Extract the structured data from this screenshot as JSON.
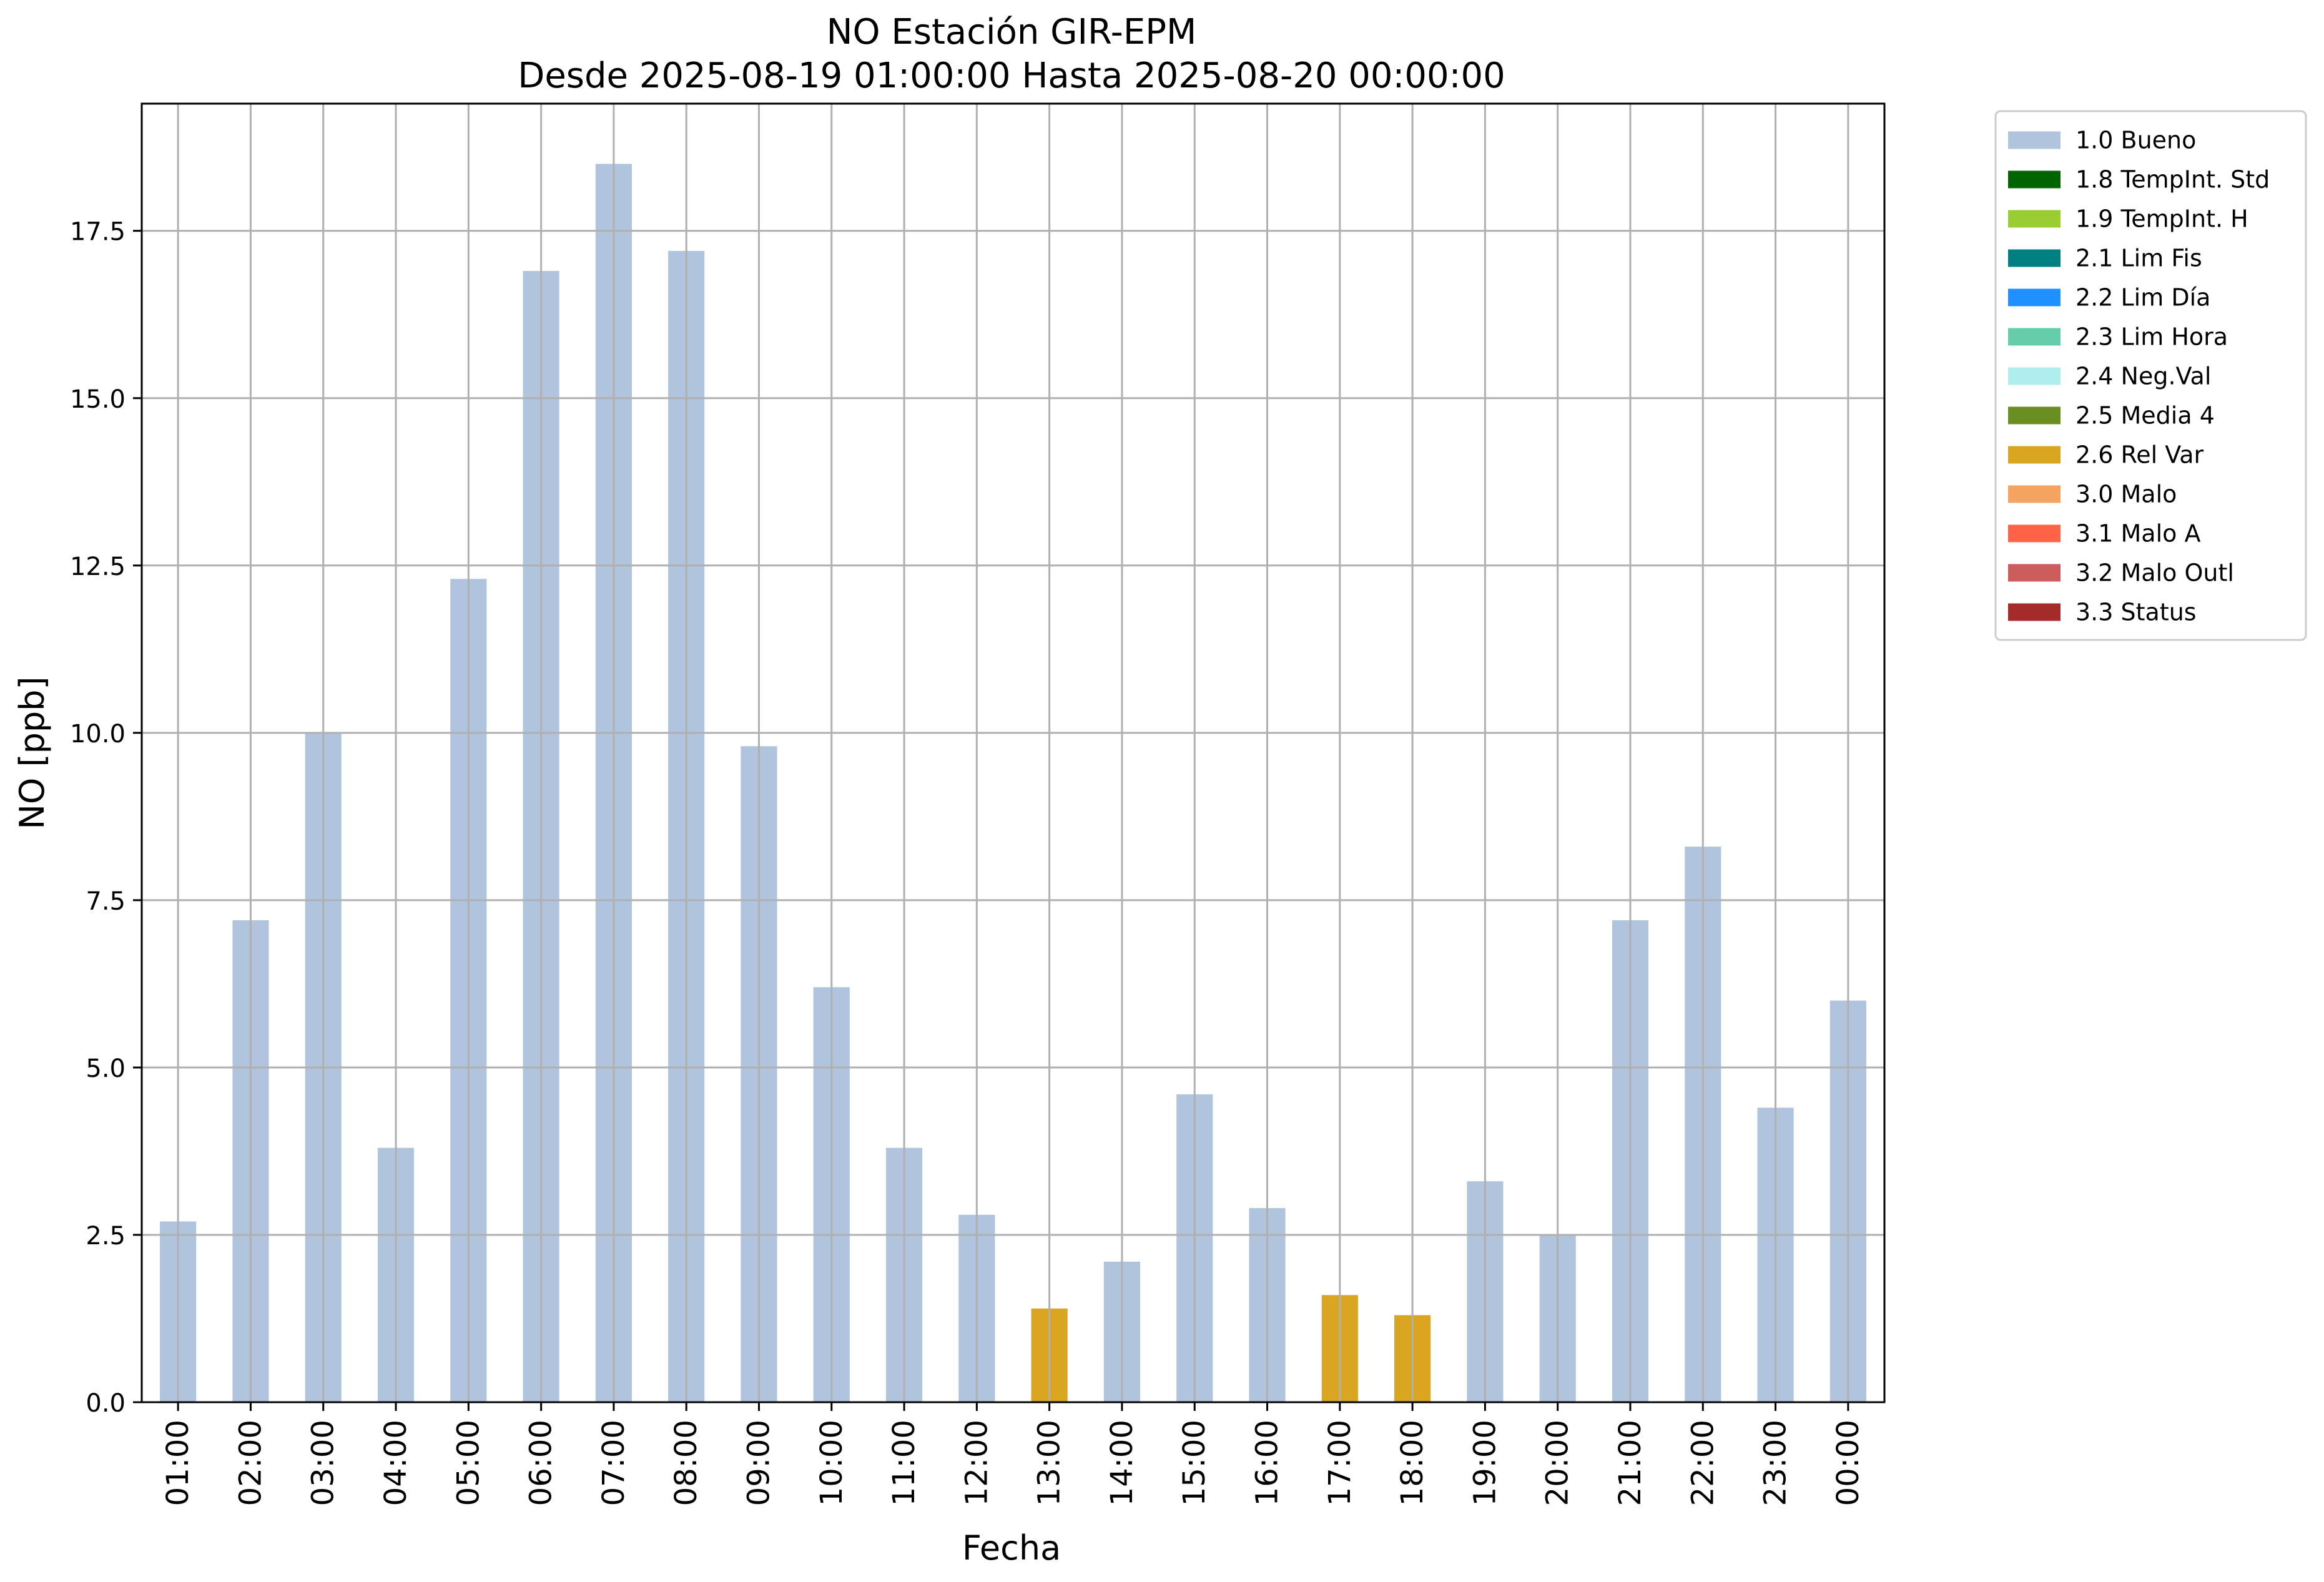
{
  "chart_data": {
    "type": "bar",
    "title": "NO Estación GIR-EPM",
    "subtitle": "Desde 2025-08-19 01:00:00 Hasta 2025-08-20 00:00:00",
    "xlabel": "Fecha",
    "ylabel": "NO [ppb]",
    "ylim": [
      0,
      19.4
    ],
    "yticks": [
      "0.0",
      "2.5",
      "5.0",
      "7.5",
      "10.0",
      "12.5",
      "15.0",
      "17.5"
    ],
    "grid": true,
    "legend_position": "outside-top-right",
    "categories": [
      "01:00",
      "02:00",
      "03:00",
      "04:00",
      "05:00",
      "06:00",
      "07:00",
      "08:00",
      "09:00",
      "10:00",
      "11:00",
      "12:00",
      "13:00",
      "14:00",
      "15:00",
      "16:00",
      "17:00",
      "18:00",
      "19:00",
      "20:00",
      "21:00",
      "22:00",
      "23:00",
      "00:00"
    ],
    "values": [
      2.7,
      7.2,
      10.0,
      3.8,
      12.3,
      16.9,
      18.5,
      17.2,
      9.8,
      6.2,
      3.8,
      2.8,
      1.4,
      2.1,
      4.6,
      2.9,
      1.6,
      1.3,
      3.3,
      2.5,
      7.2,
      8.3,
      4.4,
      6.0
    ],
    "flags": [
      "1.0",
      "1.0",
      "1.0",
      "1.0",
      "1.0",
      "1.0",
      "1.0",
      "1.0",
      "1.0",
      "1.0",
      "1.0",
      "1.0",
      "2.6",
      "1.0",
      "1.0",
      "1.0",
      "2.6",
      "2.6",
      "1.0",
      "1.0",
      "1.0",
      "1.0",
      "1.0",
      "1.0"
    ],
    "legend": [
      {
        "code": "1.0",
        "label": "1.0 Bueno",
        "color": "#b0c4de"
      },
      {
        "code": "1.8",
        "label": "1.8 TempInt. Std",
        "color": "#006400"
      },
      {
        "code": "1.9",
        "label": "1.9 TempInt. H",
        "color": "#9acd32"
      },
      {
        "code": "2.1",
        "label": "2.1 Lim Fis",
        "color": "#008080"
      },
      {
        "code": "2.2",
        "label": "2.2 Lim Día",
        "color": "#1e90ff"
      },
      {
        "code": "2.3",
        "label": "2.3 Lim Hora",
        "color": "#66cdaa"
      },
      {
        "code": "2.4",
        "label": "2.4 Neg.Val",
        "color": "#afeeee"
      },
      {
        "code": "2.5",
        "label": "2.5 Media 4",
        "color": "#6b8e23"
      },
      {
        "code": "2.6",
        "label": "2.6 Rel Var",
        "color": "#daa520"
      },
      {
        "code": "3.0",
        "label": "3.0 Malo",
        "color": "#f4a460"
      },
      {
        "code": "3.1",
        "label": "3.1 Malo A",
        "color": "#ff6347"
      },
      {
        "code": "3.2",
        "label": "3.2 Malo Outl",
        "color": "#cd5c5c"
      },
      {
        "code": "3.3",
        "label": "3.3 Status",
        "color": "#a52a2a"
      }
    ]
  }
}
